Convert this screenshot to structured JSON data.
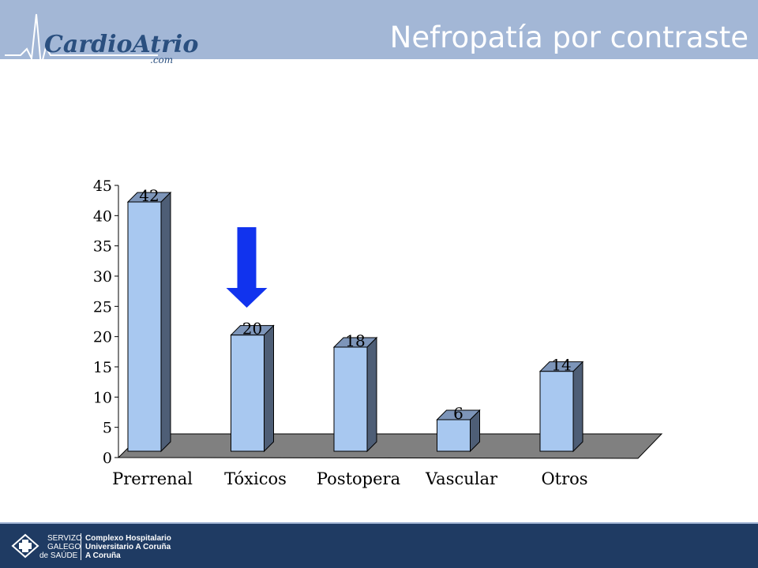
{
  "header": {
    "title": "Nefropatía por contraste",
    "logo_main": "CardioAtrio",
    "logo_sub": ".com"
  },
  "chart_data": {
    "type": "bar",
    "categories": [
      "Prerrenal",
      "Tóxicos",
      "Postopera",
      "Vascular",
      "Otros"
    ],
    "values": [
      42,
      20,
      18,
      6,
      14
    ],
    "value_labels": [
      "42",
      "20",
      "18",
      "6",
      "14"
    ],
    "ylim": [
      0,
      45
    ],
    "yticks": [
      0,
      5,
      10,
      15,
      20,
      25,
      30,
      35,
      40,
      45
    ],
    "grid": false,
    "bar_color": "#a8c8f0",
    "highlight_arrow_category": "Tóxicos",
    "arrow_color": "#1133ee"
  },
  "footer": {
    "org_line1": "SERVIZO",
    "org_line2": "GALEGO",
    "org_line3": "de SAÚDE",
    "hospital_line1": "Complexo Hospitalario",
    "hospital_line2": "Universitario A Coruña",
    "hospital_line3": "A Coruña"
  }
}
